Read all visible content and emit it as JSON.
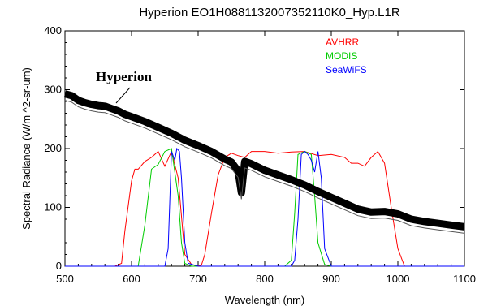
{
  "chart_data": {
    "type": "line",
    "title": "Hyperion EO1H0881132007352110K0_Hyp.L1R",
    "xlabel": "Wavelength (nm)",
    "ylabel": "Spectral Radiance (W/m ^2-sr-um)",
    "xlim": [
      500,
      1100
    ],
    "ylim": [
      0,
      400
    ],
    "xticks": [
      "500",
      "600",
      "700",
      "800",
      "900",
      "1000",
      "1100"
    ],
    "yticks": [
      "0",
      "100",
      "200",
      "300",
      "400"
    ],
    "grid": false,
    "legend_position": "top-right",
    "annotation": "Hyperion",
    "series": [
      {
        "name": "Hyperion",
        "color": "#000000",
        "x": [
          500,
          510,
          520,
          530,
          540,
          550,
          560,
          570,
          580,
          590,
          600,
          620,
          640,
          660,
          680,
          700,
          720,
          740,
          750,
          760,
          765,
          770,
          780,
          800,
          820,
          840,
          860,
          880,
          900,
          920,
          940,
          960,
          980,
          1000,
          1020,
          1040,
          1060,
          1080,
          1100
        ],
        "values": [
          293,
          290,
          282,
          278,
          275,
          273,
          272,
          268,
          264,
          258,
          254,
          246,
          236,
          226,
          214,
          205,
          195,
          182,
          177,
          162,
          125,
          178,
          174,
          163,
          155,
          147,
          138,
          127,
          117,
          107,
          97,
          92,
          93,
          89,
          80,
          76,
          73,
          70,
          67
        ]
      },
      {
        "name": "AVHRR",
        "color": "#ff0000",
        "x": [
          500,
          575,
          585,
          590,
          600,
          605,
          610,
          620,
          630,
          640,
          650,
          660,
          670,
          680,
          690,
          700,
          705,
          710,
          720,
          730,
          740,
          750,
          760,
          770,
          780,
          800,
          820,
          840,
          860,
          880,
          900,
          920,
          930,
          940,
          950,
          960,
          970,
          980,
          990,
          1000,
          1010,
          1100
        ],
        "values": [
          0,
          0,
          5,
          60,
          145,
          165,
          165,
          178,
          185,
          195,
          170,
          195,
          150,
          20,
          3,
          0,
          2,
          20,
          90,
          155,
          185,
          192,
          188,
          185,
          195,
          195,
          192,
          194,
          195,
          188,
          190,
          185,
          175,
          175,
          170,
          185,
          195,
          175,
          100,
          30,
          0,
          0
        ]
      },
      {
        "name": "MODIS",
        "color": "#00cc00",
        "x": [
          500,
          610,
          620,
          630,
          640,
          650,
          660,
          670,
          675,
          680,
          690,
          700,
          830,
          840,
          845,
          850,
          860,
          870,
          875,
          880,
          890,
          900,
          1100
        ],
        "values": [
          0,
          0,
          70,
          165,
          173,
          195,
          200,
          120,
          40,
          5,
          0,
          0,
          0,
          10,
          90,
          190,
          195,
          190,
          120,
          40,
          3,
          0,
          0
        ]
      },
      {
        "name": "SeaWiFS",
        "color": "#0000ff",
        "x": [
          500,
          650,
          655,
          660,
          665,
          668,
          672,
          675,
          680,
          685,
          700,
          840,
          845,
          850,
          855,
          860,
          865,
          870,
          875,
          880,
          885,
          890,
          900,
          1100
        ],
        "values": [
          0,
          0,
          30,
          195,
          180,
          200,
          195,
          150,
          40,
          5,
          0,
          0,
          10,
          80,
          190,
          195,
          190,
          180,
          160,
          195,
          150,
          30,
          0,
          0
        ]
      }
    ]
  }
}
